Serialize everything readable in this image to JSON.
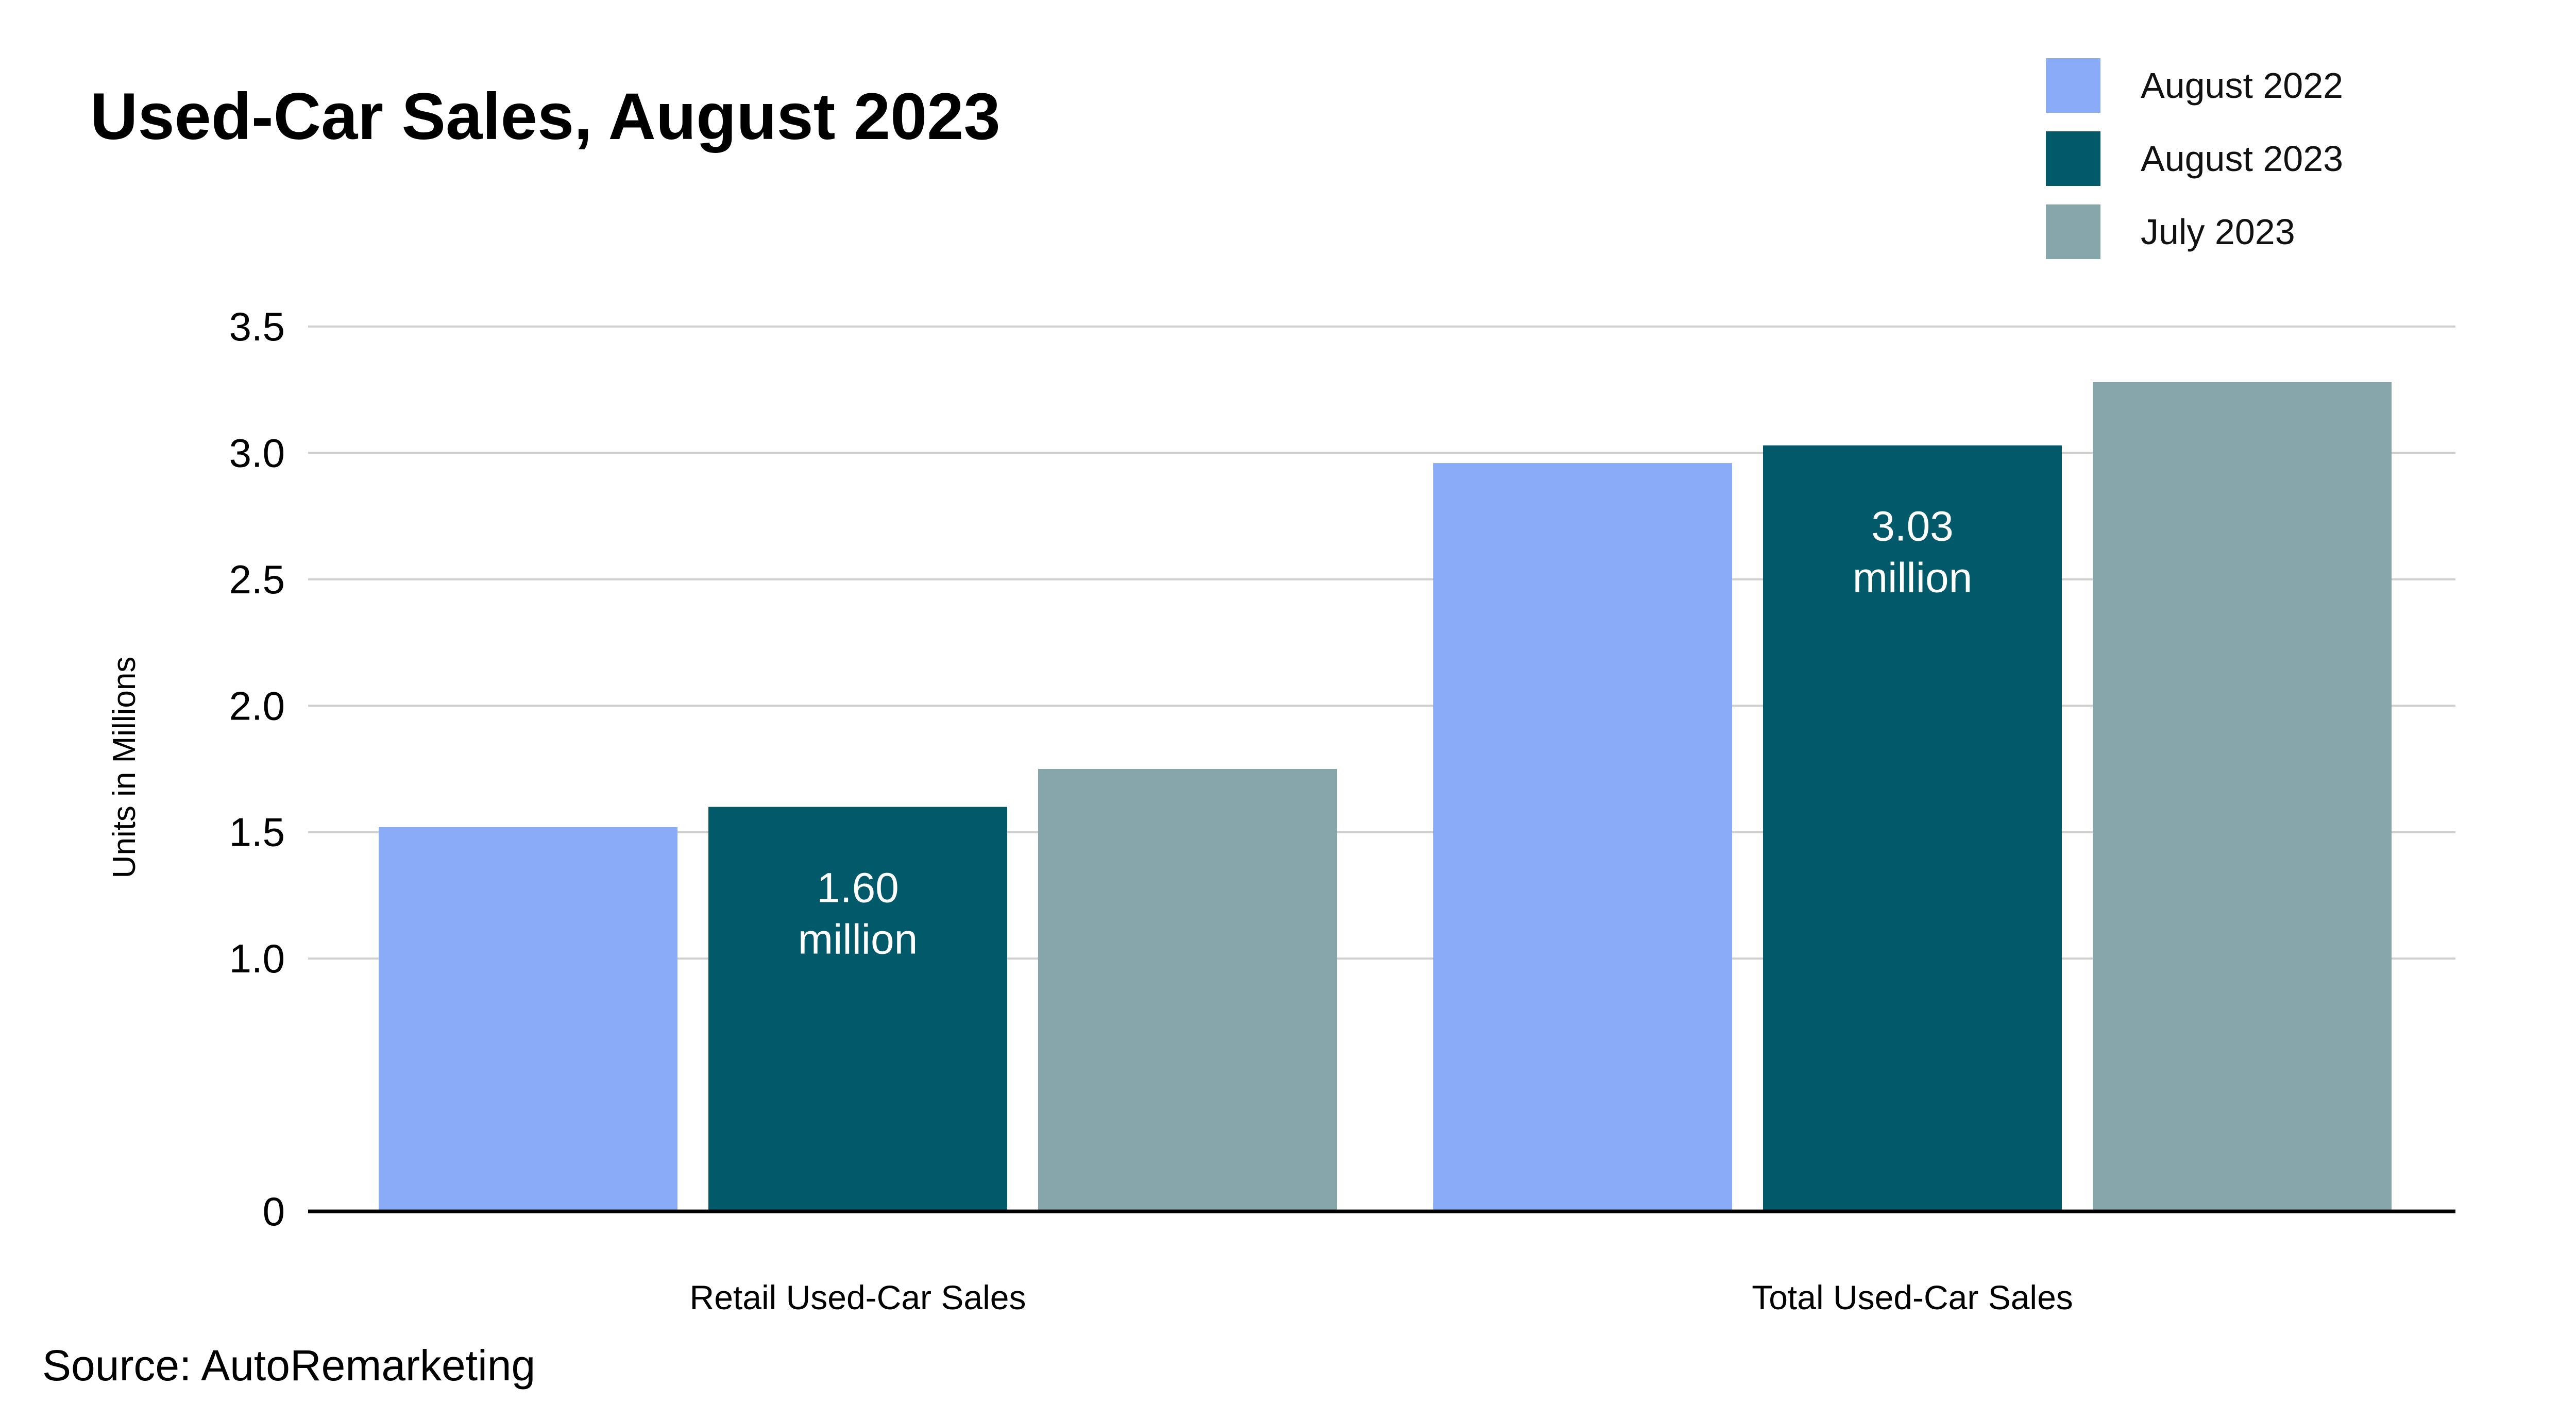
{
  "chart_data": {
    "type": "bar",
    "title": "Used-Car Sales, August 2023",
    "ylabel": "Units in Millions",
    "xlabel": "",
    "ylim": [
      0,
      3.5
    ],
    "yticks": [
      0,
      1.0,
      1.5,
      2.0,
      2.5,
      3.0,
      3.5
    ],
    "ytick_labels": [
      "0",
      "1.0",
      "1.5",
      "2.0",
      "2.5",
      "3.0",
      "3.5"
    ],
    "grid": true,
    "legend_position": "top-right",
    "categories": [
      "Retail Used-Car Sales",
      "Total Used-Car Sales"
    ],
    "series": [
      {
        "name": "August 2022",
        "color": "#8aacf8",
        "values": [
          1.52,
          2.96
        ]
      },
      {
        "name": "August 2023",
        "color": "#02596a",
        "values": [
          1.6,
          3.03
        ]
      },
      {
        "name": "July 2023",
        "color": "#87a6ab",
        "values": [
          1.75,
          3.28
        ]
      }
    ],
    "annotations": [
      {
        "series": 1,
        "category": 0,
        "lines": [
          "1.60",
          "million"
        ]
      },
      {
        "series": 1,
        "category": 1,
        "lines": [
          "3.03",
          "million"
        ]
      }
    ]
  },
  "source": "Source: AutoRemarketing"
}
